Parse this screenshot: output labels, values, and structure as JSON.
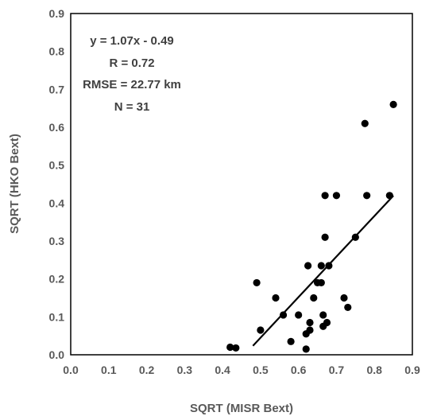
{
  "chart_data": {
    "type": "scatter",
    "xlabel": "SQRT (MISR Bext)",
    "ylabel": "SQRT (HKO Bext)",
    "xlim": [
      0,
      0.9
    ],
    "ylim": [
      0,
      0.9
    ],
    "xticks": [
      "0.0",
      "0.1",
      "0.2",
      "0.3",
      "0.4",
      "0.5",
      "0.6",
      "0.7",
      "0.8",
      "0.9"
    ],
    "yticks": [
      "0.0",
      "0.1",
      "0.2",
      "0.3",
      "0.4",
      "0.5",
      "0.6",
      "0.7",
      "0.8",
      "0.9"
    ],
    "grid": false,
    "annotations": [
      "y = 1.07x - 0.49",
      "R = 0.72",
      "RMSE = 22.77 km",
      "N = 31"
    ],
    "trendline": {
      "slope": 1.07,
      "intercept": -0.49,
      "x_range": [
        0.48,
        0.85
      ]
    },
    "points": [
      [
        0.42,
        0.02
      ],
      [
        0.435,
        0.018
      ],
      [
        0.49,
        0.19
      ],
      [
        0.5,
        0.065
      ],
      [
        0.54,
        0.15
      ],
      [
        0.56,
        0.105
      ],
      [
        0.58,
        0.035
      ],
      [
        0.6,
        0.105
      ],
      [
        0.62,
        0.015
      ],
      [
        0.62,
        0.055
      ],
      [
        0.625,
        0.235
      ],
      [
        0.63,
        0.065
      ],
      [
        0.63,
        0.085
      ],
      [
        0.64,
        0.15
      ],
      [
        0.65,
        0.19
      ],
      [
        0.66,
        0.235
      ],
      [
        0.66,
        0.19
      ],
      [
        0.665,
        0.105
      ],
      [
        0.665,
        0.075
      ],
      [
        0.67,
        0.42
      ],
      [
        0.67,
        0.31
      ],
      [
        0.675,
        0.085
      ],
      [
        0.68,
        0.235
      ],
      [
        0.7,
        0.42
      ],
      [
        0.72,
        0.15
      ],
      [
        0.73,
        0.125
      ],
      [
        0.75,
        0.31
      ],
      [
        0.775,
        0.61
      ],
      [
        0.78,
        0.42
      ],
      [
        0.84,
        0.42
      ],
      [
        0.85,
        0.66
      ]
    ]
  }
}
